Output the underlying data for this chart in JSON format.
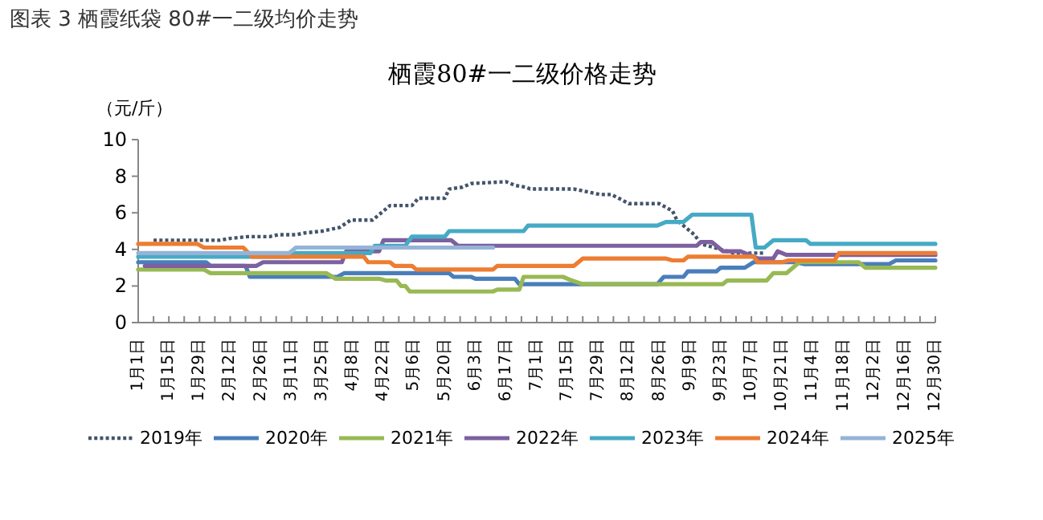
{
  "chart_data": {
    "type": "line",
    "title": "图表 3 栖霞纸袋 80#一二级均价走势",
    "subtitle": "栖霞80#一二级价格走势",
    "ylabel": "（元/斤）",
    "xlim": [
      "--01-01",
      "--12-30"
    ],
    "xticks": [
      {
        "value": "--01-01",
        "label": "1月1日"
      },
      {
        "value": "--01-08",
        "label": null
      },
      {
        "value": "--01-15",
        "label": "1月15日"
      },
      {
        "value": "--01-22",
        "label": null
      },
      {
        "value": "--01-29",
        "label": "1月29日"
      },
      {
        "value": "--02-05",
        "label": null
      },
      {
        "value": "--02-12",
        "label": "2月12日"
      },
      {
        "value": "--02-19",
        "label": null
      },
      {
        "value": "--02-26",
        "label": "2月26日"
      },
      {
        "value": "--03-04",
        "label": null
      },
      {
        "value": "--03-11",
        "label": "3月11日"
      },
      {
        "value": "--03-18",
        "label": null
      },
      {
        "value": "--03-25",
        "label": "3月25日"
      },
      {
        "value": "--04-01",
        "label": null
      },
      {
        "value": "--04-08",
        "label": "4月8日"
      },
      {
        "value": "--04-15",
        "label": null
      },
      {
        "value": "--04-22",
        "label": "4月22日"
      },
      {
        "value": "--04-29",
        "label": null
      },
      {
        "value": "--05-06",
        "label": "5月6日"
      },
      {
        "value": "--05-13",
        "label": null
      },
      {
        "value": "--05-20",
        "label": "5月20日"
      },
      {
        "value": "--05-27",
        "label": null
      },
      {
        "value": "--06-03",
        "label": "6月3日"
      },
      {
        "value": "--06-10",
        "label": null
      },
      {
        "value": "--06-17",
        "label": "6月17日"
      },
      {
        "value": "--06-24",
        "label": null
      },
      {
        "value": "--07-01",
        "label": "7月1日"
      },
      {
        "value": "--07-08",
        "label": null
      },
      {
        "value": "--07-15",
        "label": "7月15日"
      },
      {
        "value": "--07-22",
        "label": null
      },
      {
        "value": "--07-29",
        "label": "7月29日"
      },
      {
        "value": "--08-05",
        "label": null
      },
      {
        "value": "--08-12",
        "label": "8月12日"
      },
      {
        "value": "--08-19",
        "label": null
      },
      {
        "value": "--08-26",
        "label": "8月26日"
      },
      {
        "value": "--09-02",
        "label": null
      },
      {
        "value": "--09-09",
        "label": "9月9日"
      },
      {
        "value": "--09-16",
        "label": null
      },
      {
        "value": "--09-23",
        "label": "9月23日"
      },
      {
        "value": "--09-30",
        "label": null
      },
      {
        "value": "--10-07",
        "label": "10月7日"
      },
      {
        "value": "--10-14",
        "label": null
      },
      {
        "value": "--10-21",
        "label": "10月21日"
      },
      {
        "value": "--10-28",
        "label": null
      },
      {
        "value": "--11-04",
        "label": "11月4日"
      },
      {
        "value": "--11-11",
        "label": null
      },
      {
        "value": "--11-18",
        "label": "11月18日"
      },
      {
        "value": "--11-25",
        "label": null
      },
      {
        "value": "--12-02",
        "label": "12月2日"
      },
      {
        "value": "--12-09",
        "label": null
      },
      {
        "value": "--12-16",
        "label": "12月16日"
      },
      {
        "value": "--12-23",
        "label": null
      },
      {
        "value": "--12-30",
        "label": "12月30日"
      }
    ],
    "ylim": [
      0,
      10
    ],
    "yticks": [
      0,
      2,
      4,
      6,
      8,
      10
    ],
    "legend": "bottom",
    "series": [
      {
        "name": "2019年",
        "color": "#44546a",
        "line_style": "dotted",
        "x": [
          "--01-08",
          "--02-07",
          "--02-12",
          "--02-20",
          "--03-01",
          "--03-05",
          "--03-13",
          "--03-17",
          "--03-25",
          "--03-29",
          "--04-02",
          "--04-07",
          "--04-17",
          "--04-21",
          "--04-25",
          "--05-05",
          "--05-08",
          "--05-20",
          "--05-22",
          "--05-28",
          "--06-01",
          "--06-17",
          "--06-21",
          "--06-26",
          "--06-28",
          "--07-18",
          "--07-22",
          "--07-30",
          "--08-04",
          "--08-09",
          "--08-12",
          "--08-26",
          "--08-29",
          "--09-01",
          "--09-03",
          "--09-07",
          "--09-11",
          "--09-14",
          "--09-23",
          "--09-29",
          "--10-13"
        ],
        "values": [
          4.5,
          4.5,
          4.6,
          4.7,
          4.7,
          4.8,
          4.8,
          4.9,
          5.0,
          5.1,
          5.2,
          5.6,
          5.6,
          6.0,
          6.4,
          6.4,
          6.8,
          6.8,
          7.3,
          7.4,
          7.6,
          7.7,
          7.5,
          7.4,
          7.3,
          7.3,
          7.2,
          7.0,
          7.0,
          6.7,
          6.5,
          6.5,
          6.3,
          6.1,
          5.6,
          5.2,
          4.8,
          4.3,
          4.0,
          3.8,
          3.8
        ]
      },
      {
        "name": "2020年",
        "color": "#4a7ebb",
        "x": [
          "--01-01",
          "--02-01",
          "--02-03",
          "--02-19",
          "--02-21",
          "--04-01",
          "--04-04",
          "--05-22",
          "--05-24",
          "--06-01",
          "--06-03",
          "--06-21",
          "--06-23",
          "--08-25",
          "--08-28",
          "--09-06",
          "--09-08",
          "--09-21",
          "--09-23",
          "--10-04",
          "--10-08",
          "--10-27",
          "--10-31",
          "--12-09",
          "--12-12",
          "--12-30"
        ],
        "values": [
          3.3,
          3.3,
          3.1,
          3.1,
          2.5,
          2.5,
          2.7,
          2.7,
          2.5,
          2.5,
          2.4,
          2.4,
          2.1,
          2.1,
          2.5,
          2.5,
          2.8,
          2.8,
          3.0,
          3.0,
          3.3,
          3.3,
          3.2,
          3.2,
          3.4,
          3.4
        ]
      },
      {
        "name": "2021年",
        "color": "#98b954",
        "x": [
          "--01-01",
          "--01-31",
          "--02-03",
          "--03-27",
          "--03-31",
          "--04-20",
          "--04-23",
          "--04-28",
          "--04-30",
          "--05-02",
          "--05-04",
          "--06-11",
          "--06-13",
          "--06-23",
          "--06-25",
          "--07-13",
          "--07-17",
          "--07-22",
          "--09-24",
          "--09-26",
          "--10-14",
          "--10-17",
          "--10-23",
          "--10-27",
          "--10-29",
          "--11-25",
          "--11-28",
          "--12-30"
        ],
        "values": [
          2.9,
          2.9,
          2.7,
          2.7,
          2.4,
          2.4,
          2.3,
          2.3,
          2.0,
          2.0,
          1.7,
          1.7,
          1.8,
          1.8,
          2.5,
          2.5,
          2.3,
          2.1,
          2.1,
          2.3,
          2.3,
          2.7,
          2.7,
          3.1,
          3.3,
          3.3,
          3.0,
          3.0
        ]
      },
      {
        "name": "2022年",
        "color": "#7d60a0",
        "x": [
          "--01-04",
          "--02-24",
          "--02-27",
          "--04-03",
          "--04-05",
          "--04-20",
          "--04-22",
          "--05-23",
          "--05-26",
          "--09-12",
          "--09-14",
          "--09-19",
          "--09-21",
          "--09-24",
          "--10-02",
          "--10-10",
          "--10-17",
          "--10-19",
          "--10-23",
          "--12-30"
        ],
        "values": [
          3.1,
          3.1,
          3.3,
          3.3,
          3.9,
          3.9,
          4.5,
          4.5,
          4.2,
          4.2,
          4.4,
          4.4,
          4.2,
          3.9,
          3.9,
          3.5,
          3.5,
          3.9,
          3.7,
          3.7
        ]
      },
      {
        "name": "2023年",
        "color": "#46aac5",
        "x": [
          "--01-01",
          "--03-10",
          "--03-13",
          "--04-16",
          "--04-18",
          "--05-02",
          "--05-05",
          "--05-20",
          "--05-22",
          "--06-25",
          "--06-27",
          "--08-25",
          "--08-29",
          "--09-06",
          "--09-10",
          "--10-07",
          "--10-09",
          "--10-13",
          "--10-17",
          "--11-01",
          "--11-03",
          "--12-30"
        ],
        "values": [
          3.6,
          3.6,
          3.8,
          3.8,
          4.2,
          4.2,
          4.7,
          4.7,
          5.0,
          5.0,
          5.3,
          5.3,
          5.5,
          5.5,
          5.9,
          5.9,
          4.1,
          4.1,
          4.5,
          4.5,
          4.3,
          4.3
        ]
      },
      {
        "name": "2024年",
        "color": "#ed7d31",
        "x": [
          "--01-01",
          "--01-28",
          "--01-31",
          "--02-18",
          "--02-22",
          "--04-13",
          "--04-15",
          "--04-25",
          "--04-27",
          "--05-05",
          "--05-07",
          "--06-11",
          "--06-13",
          "--07-18",
          "--07-22",
          "--08-29",
          "--09-01",
          "--09-06",
          "--09-08",
          "--10-08",
          "--10-10",
          "--10-21",
          "--10-24",
          "--11-14",
          "--11-16",
          "--12-30"
        ],
        "values": [
          4.3,
          4.3,
          4.1,
          4.1,
          3.6,
          3.6,
          3.3,
          3.3,
          3.1,
          3.1,
          2.9,
          2.9,
          3.1,
          3.1,
          3.5,
          3.5,
          3.4,
          3.4,
          3.6,
          3.6,
          3.3,
          3.3,
          3.4,
          3.4,
          3.8,
          3.8
        ]
      },
      {
        "name": "2025年",
        "color": "#95b3d7",
        "x": [
          "--01-01",
          "--03-10",
          "--03-13",
          "--06-11"
        ],
        "values": [
          3.8,
          3.8,
          4.1,
          4.1
        ]
      }
    ]
  }
}
